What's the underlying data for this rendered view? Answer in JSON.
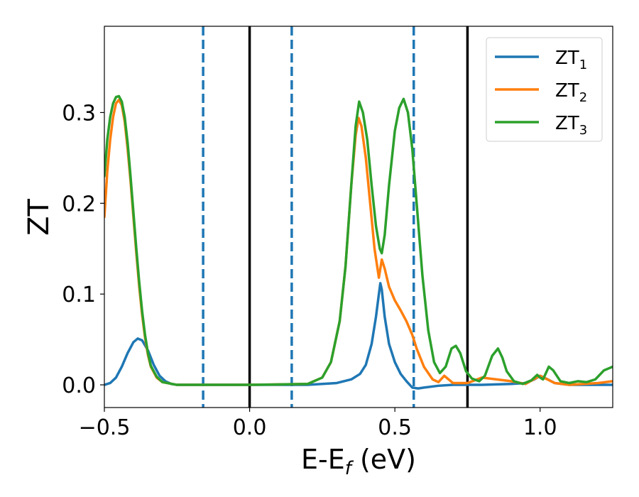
{
  "chart_data": {
    "type": "line",
    "xlabel_main": "E-E",
    "xlabel_sub": "f",
    "xlabel_unit": " (eV)",
    "ylabel": "ZT",
    "xlim": [
      -0.5,
      1.25
    ],
    "ylim": [
      -0.025,
      0.395
    ],
    "grid": false,
    "legend_placement": "top-right",
    "xticks": [
      {
        "value": -0.5,
        "label": "−0.5"
      },
      {
        "value": 0.0,
        "label": "0.0"
      },
      {
        "value": 0.5,
        "label": "0.5"
      },
      {
        "value": 1.0,
        "label": "1.0"
      }
    ],
    "yticks": [
      {
        "value": 0.0,
        "label": "0.0"
      },
      {
        "value": 0.1,
        "label": "0.1"
      },
      {
        "value": 0.2,
        "label": "0.2"
      },
      {
        "value": 0.3,
        "label": "0.3"
      }
    ],
    "vertical_lines": [
      {
        "x": -0.16,
        "style": "dashed",
        "color": "#1f77b4"
      },
      {
        "x": 0.0,
        "style": "solid",
        "color": "#000000"
      },
      {
        "x": 0.145,
        "style": "dashed",
        "color": "#1f77b4"
      },
      {
        "x": 0.565,
        "style": "dashed",
        "color": "#1f77b4"
      },
      {
        "x": 0.75,
        "style": "solid",
        "color": "#000000"
      }
    ],
    "series": [
      {
        "name": "ZT",
        "subscript": "1",
        "color": "#1f77b4",
        "points": [
          [
            -0.5,
            0.0
          ],
          [
            -0.48,
            0.002
          ],
          [
            -0.46,
            0.008
          ],
          [
            -0.44,
            0.02
          ],
          [
            -0.42,
            0.035
          ],
          [
            -0.4,
            0.047
          ],
          [
            -0.385,
            0.051
          ],
          [
            -0.37,
            0.049
          ],
          [
            -0.35,
            0.038
          ],
          [
            -0.33,
            0.022
          ],
          [
            -0.31,
            0.01
          ],
          [
            -0.29,
            0.004
          ],
          [
            -0.27,
            0.001
          ],
          [
            -0.25,
            0.0
          ],
          [
            0.0,
            0.0
          ],
          [
            0.2,
            0.0
          ],
          [
            0.3,
            0.002
          ],
          [
            0.35,
            0.006
          ],
          [
            0.38,
            0.012
          ],
          [
            0.4,
            0.022
          ],
          [
            0.42,
            0.045
          ],
          [
            0.435,
            0.075
          ],
          [
            0.445,
            0.1
          ],
          [
            0.45,
            0.112
          ],
          [
            0.455,
            0.105
          ],
          [
            0.465,
            0.075
          ],
          [
            0.48,
            0.045
          ],
          [
            0.5,
            0.025
          ],
          [
            0.52,
            0.012
          ],
          [
            0.54,
            0.004
          ],
          [
            0.56,
            -0.003
          ],
          [
            0.58,
            -0.004
          ],
          [
            0.6,
            -0.003
          ],
          [
            0.65,
            -0.001
          ],
          [
            0.7,
            0.0
          ],
          [
            0.8,
            0.0
          ],
          [
            0.9,
            0.001
          ],
          [
            0.95,
            0.002
          ],
          [
            0.98,
            0.006
          ],
          [
            1.0,
            0.01
          ],
          [
            1.02,
            0.007
          ],
          [
            1.05,
            0.002
          ],
          [
            1.1,
            0.0
          ],
          [
            1.2,
            0.0
          ],
          [
            1.25,
            0.0
          ]
        ]
      },
      {
        "name": "ZT",
        "subscript": "2",
        "color": "#ff7f0e",
        "points": [
          [
            -0.5,
            0.185
          ],
          [
            -0.49,
            0.235
          ],
          [
            -0.48,
            0.27
          ],
          [
            -0.47,
            0.295
          ],
          [
            -0.46,
            0.31
          ],
          [
            -0.45,
            0.314
          ],
          [
            -0.44,
            0.308
          ],
          [
            -0.43,
            0.29
          ],
          [
            -0.42,
            0.26
          ],
          [
            -0.41,
            0.225
          ],
          [
            -0.4,
            0.185
          ],
          [
            -0.39,
            0.145
          ],
          [
            -0.38,
            0.108
          ],
          [
            -0.37,
            0.077
          ],
          [
            -0.36,
            0.052
          ],
          [
            -0.35,
            0.033
          ],
          [
            -0.34,
            0.02
          ],
          [
            -0.32,
            0.008
          ],
          [
            -0.3,
            0.003
          ],
          [
            -0.25,
            0.0
          ],
          [
            0.0,
            0.0
          ],
          [
            0.2,
            0.001
          ],
          [
            0.25,
            0.008
          ],
          [
            0.28,
            0.025
          ],
          [
            0.31,
            0.07
          ],
          [
            0.33,
            0.13
          ],
          [
            0.35,
            0.22
          ],
          [
            0.365,
            0.275
          ],
          [
            0.375,
            0.294
          ],
          [
            0.385,
            0.285
          ],
          [
            0.4,
            0.25
          ],
          [
            0.415,
            0.2
          ],
          [
            0.43,
            0.15
          ],
          [
            0.445,
            0.118
          ],
          [
            0.455,
            0.138
          ],
          [
            0.465,
            0.128
          ],
          [
            0.48,
            0.108
          ],
          [
            0.5,
            0.093
          ],
          [
            0.52,
            0.082
          ],
          [
            0.54,
            0.07
          ],
          [
            0.56,
            0.055
          ],
          [
            0.575,
            0.04
          ],
          [
            0.6,
            0.02
          ],
          [
            0.63,
            0.006
          ],
          [
            0.65,
            0.003
          ],
          [
            0.67,
            0.01
          ],
          [
            0.7,
            0.002
          ],
          [
            0.75,
            0.002
          ],
          [
            0.8,
            0.008
          ],
          [
            0.85,
            0.006
          ],
          [
            0.9,
            0.004
          ],
          [
            0.95,
            0.001
          ],
          [
            1.0,
            0.01
          ],
          [
            1.05,
            0.002
          ],
          [
            1.1,
            0.0
          ],
          [
            1.2,
            0.002
          ],
          [
            1.25,
            0.004
          ]
        ]
      },
      {
        "name": "ZT",
        "subscript": "3",
        "color": "#2ca02c",
        "points": [
          [
            -0.5,
            0.23
          ],
          [
            -0.49,
            0.27
          ],
          [
            -0.48,
            0.295
          ],
          [
            -0.47,
            0.31
          ],
          [
            -0.46,
            0.317
          ],
          [
            -0.45,
            0.318
          ],
          [
            -0.44,
            0.312
          ],
          [
            -0.43,
            0.295
          ],
          [
            -0.42,
            0.267
          ],
          [
            -0.41,
            0.23
          ],
          [
            -0.4,
            0.19
          ],
          [
            -0.39,
            0.15
          ],
          [
            -0.38,
            0.113
          ],
          [
            -0.37,
            0.081
          ],
          [
            -0.36,
            0.055
          ],
          [
            -0.35,
            0.035
          ],
          [
            -0.34,
            0.021
          ],
          [
            -0.32,
            0.009
          ],
          [
            -0.3,
            0.003
          ],
          [
            -0.25,
            0.0
          ],
          [
            0.0,
            0.0
          ],
          [
            0.2,
            0.001
          ],
          [
            0.25,
            0.008
          ],
          [
            0.28,
            0.025
          ],
          [
            0.31,
            0.07
          ],
          [
            0.33,
            0.13
          ],
          [
            0.35,
            0.22
          ],
          [
            0.365,
            0.285
          ],
          [
            0.377,
            0.312
          ],
          [
            0.39,
            0.3
          ],
          [
            0.405,
            0.27
          ],
          [
            0.42,
            0.22
          ],
          [
            0.435,
            0.175
          ],
          [
            0.448,
            0.15
          ],
          [
            0.455,
            0.145
          ],
          [
            0.465,
            0.165
          ],
          [
            0.48,
            0.22
          ],
          [
            0.5,
            0.28
          ],
          [
            0.515,
            0.305
          ],
          [
            0.53,
            0.315
          ],
          [
            0.545,
            0.3
          ],
          [
            0.56,
            0.26
          ],
          [
            0.575,
            0.2
          ],
          [
            0.595,
            0.12
          ],
          [
            0.615,
            0.06
          ],
          [
            0.635,
            0.025
          ],
          [
            0.655,
            0.013
          ],
          [
            0.675,
            0.02
          ],
          [
            0.695,
            0.04
          ],
          [
            0.71,
            0.043
          ],
          [
            0.725,
            0.035
          ],
          [
            0.745,
            0.015
          ],
          [
            0.765,
            0.007
          ],
          [
            0.79,
            0.004
          ],
          [
            0.81,
            0.01
          ],
          [
            0.835,
            0.032
          ],
          [
            0.855,
            0.04
          ],
          [
            0.87,
            0.03
          ],
          [
            0.885,
            0.015
          ],
          [
            0.91,
            0.004
          ],
          [
            0.94,
            0.001
          ],
          [
            0.97,
            0.005
          ],
          [
            0.99,
            0.011
          ],
          [
            1.0,
            0.008
          ],
          [
            1.01,
            0.006
          ],
          [
            1.03,
            0.02
          ],
          [
            1.045,
            0.016
          ],
          [
            1.07,
            0.004
          ],
          [
            1.1,
            0.002
          ],
          [
            1.13,
            0.004
          ],
          [
            1.16,
            0.003
          ],
          [
            1.19,
            0.006
          ],
          [
            1.22,
            0.016
          ],
          [
            1.25,
            0.02
          ]
        ]
      }
    ]
  }
}
